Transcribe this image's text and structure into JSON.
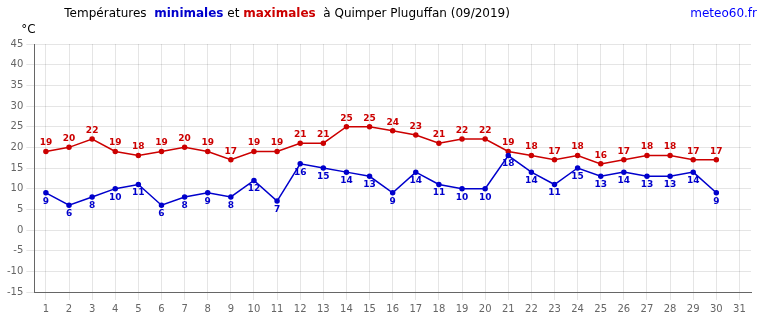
{
  "chart_data": {
    "type": "line",
    "title": "Températures  minimales et maximales  à Quimper Pluguffan (09/2019)",
    "ylabel": "°C",
    "annotations": [
      {
        "text": "meteo60.fr",
        "color": "#0000ff"
      }
    ],
    "x": [
      1,
      2,
      3,
      4,
      5,
      6,
      7,
      8,
      9,
      10,
      11,
      12,
      13,
      14,
      15,
      16,
      17,
      18,
      19,
      20,
      21,
      22,
      23,
      24,
      25,
      26,
      27,
      28,
      29,
      30,
      31
    ],
    "series": [
      {
        "name": "minimales",
        "color": "#0000cc",
        "marker": "circle",
        "values": [
          9,
          6,
          8,
          10,
          11,
          6,
          8,
          9,
          8,
          12,
          7,
          16,
          15,
          14,
          13,
          9,
          14,
          11,
          10,
          10,
          18,
          14,
          11,
          15,
          13,
          14,
          13,
          13,
          14,
          9,
          null
        ]
      },
      {
        "name": "maximales",
        "color": "#cc0000",
        "marker": "circle",
        "values": [
          19,
          20,
          22,
          19,
          18,
          19,
          20,
          19,
          17,
          19,
          19,
          21,
          21,
          25,
          25,
          24,
          23,
          21,
          22,
          22,
          19,
          18,
          17,
          18,
          16,
          17,
          18,
          18,
          17,
          17,
          null
        ]
      }
    ],
    "xlim": [
      0.5,
      31.5
    ],
    "xticks": [
      1,
      2,
      3,
      4,
      5,
      6,
      7,
      8,
      9,
      10,
      11,
      12,
      13,
      14,
      15,
      16,
      17,
      18,
      19,
      20,
      21,
      22,
      23,
      24,
      25,
      26,
      27,
      28,
      29,
      30,
      31
    ],
    "ylim": [
      -15,
      45
    ],
    "yticks": [
      -15,
      -10,
      -5,
      0,
      5,
      10,
      15,
      20,
      25,
      30,
      35,
      40,
      45
    ],
    "grid": true,
    "data_labels": true
  }
}
